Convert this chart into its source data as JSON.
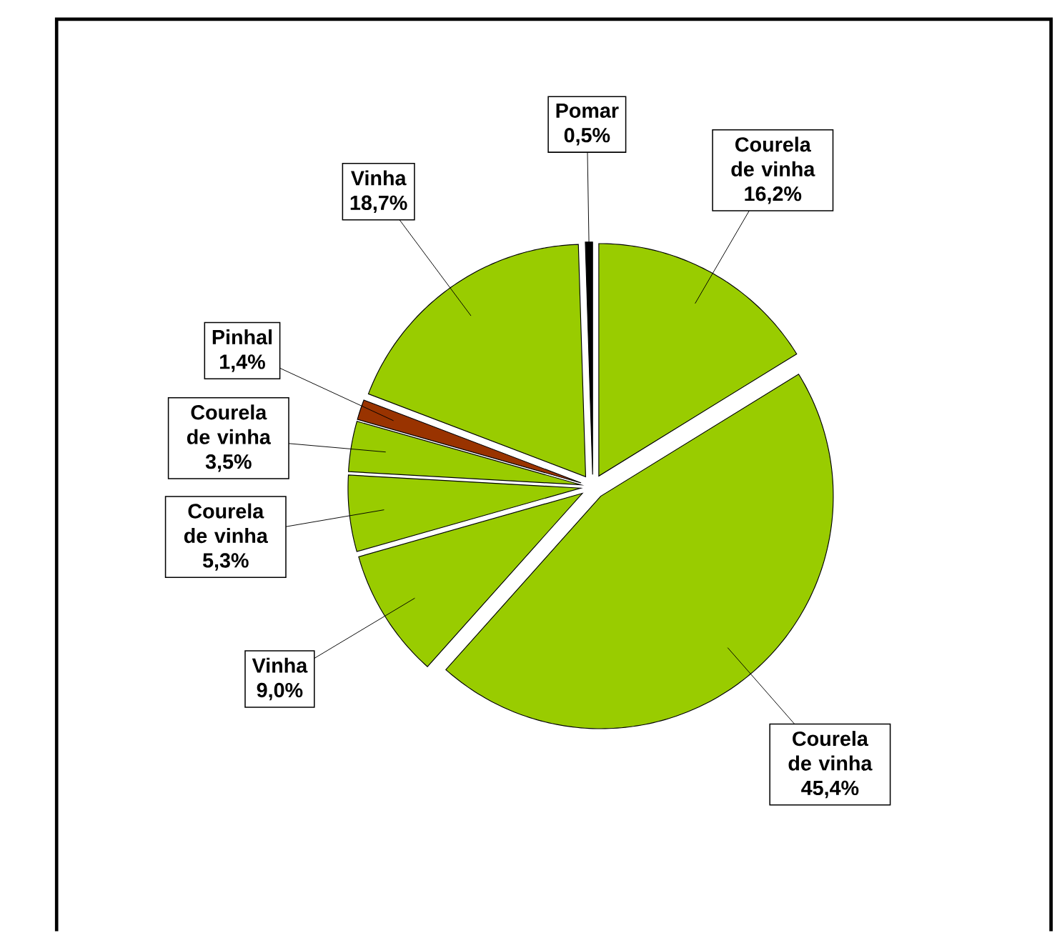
{
  "chart_data": {
    "type": "pie",
    "categories": [
      "Courela de vinha",
      "Courela de vinha",
      "Vinha",
      "Courela de vinha",
      "Courela de vinha",
      "Pinhal",
      "Vinha",
      "Pomar"
    ],
    "values": [
      16.2,
      45.4,
      9.0,
      5.3,
      3.5,
      1.4,
      18.7,
      0.5
    ],
    "value_labels": [
      "16,2%",
      "45,4%",
      "9,0%",
      "5,3%",
      "3,5%",
      "1,4%",
      "18,7%",
      "0,5%"
    ],
    "colors": [
      "#99cc00",
      "#99cc00",
      "#99cc00",
      "#99cc00",
      "#99cc00",
      "#993300",
      "#99cc00",
      "#000000"
    ]
  }
}
